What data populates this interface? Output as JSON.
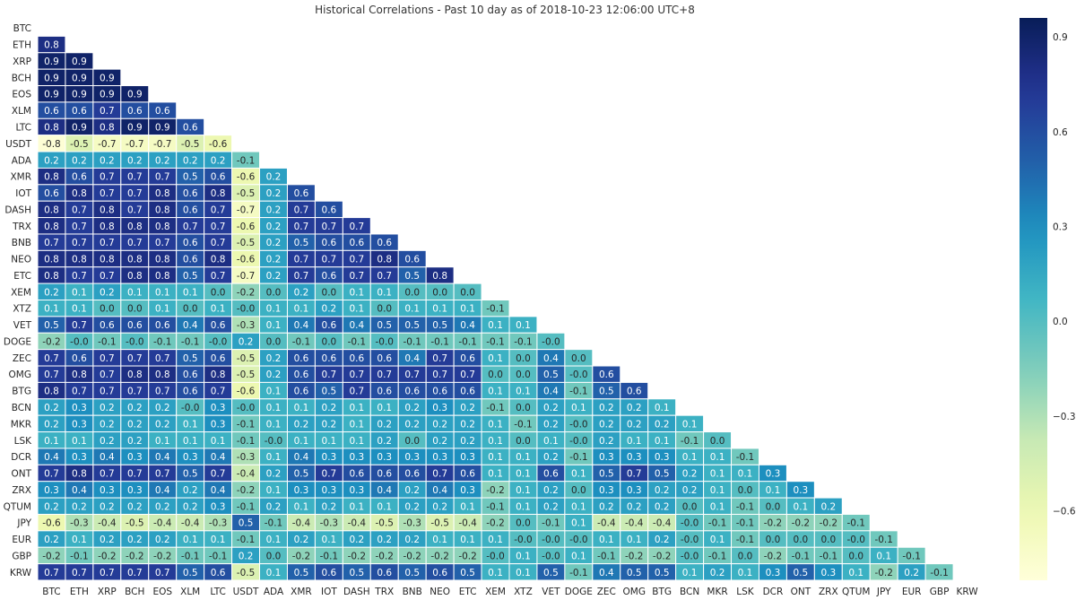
{
  "chart_data": {
    "type": "heatmap",
    "title": "Historical Correlations - Past 10 day as of 2018-10-23 12:06:00 UTC+8",
    "labels": [
      "BTC",
      "ETH",
      "XRP",
      "BCH",
      "EOS",
      "XLM",
      "LTC",
      "USDT",
      "ADA",
      "XMR",
      "IOT",
      "DASH",
      "TRX",
      "BNB",
      "NEO",
      "ETC",
      "XEM",
      "XTZ",
      "VET",
      "DOGE",
      "ZEC",
      "OMG",
      "BTG",
      "BCN",
      "MKR",
      "LSK",
      "DCR",
      "ONT",
      "ZRX",
      "QTUM",
      "JPY",
      "EUR",
      "GBP",
      "KRW"
    ],
    "matrix_lower_triangle": [
      [],
      [
        "0.8"
      ],
      [
        "0.9",
        "0.9"
      ],
      [
        "0.9",
        "0.9",
        "0.9"
      ],
      [
        "0.9",
        "0.9",
        "0.9",
        "0.9"
      ],
      [
        "0.6",
        "0.6",
        "0.7",
        "0.6",
        "0.6"
      ],
      [
        "0.8",
        "0.9",
        "0.8",
        "0.9",
        "0.9",
        "0.6"
      ],
      [
        "-0.8",
        "-0.5",
        "-0.7",
        "-0.7",
        "-0.7",
        "-0.5",
        "-0.6"
      ],
      [
        "0.2",
        "0.2",
        "0.2",
        "0.2",
        "0.2",
        "0.2",
        "0.2",
        "-0.1"
      ],
      [
        "0.8",
        "0.6",
        "0.7",
        "0.7",
        "0.7",
        "0.5",
        "0.6",
        "-0.6",
        "0.2"
      ],
      [
        "0.6",
        "0.8",
        "0.7",
        "0.7",
        "0.8",
        "0.6",
        "0.8",
        "-0.5",
        "0.2",
        "0.6"
      ],
      [
        "0.8",
        "0.7",
        "0.8",
        "0.7",
        "0.8",
        "0.6",
        "0.7",
        "-0.7",
        "0.2",
        "0.7",
        "0.6"
      ],
      [
        "0.8",
        "0.7",
        "0.8",
        "0.8",
        "0.8",
        "0.7",
        "0.7",
        "-0.6",
        "0.2",
        "0.7",
        "0.7",
        "0.7"
      ],
      [
        "0.7",
        "0.7",
        "0.7",
        "0.7",
        "0.7",
        "0.6",
        "0.7",
        "-0.5",
        "0.2",
        "0.5",
        "0.6",
        "0.6",
        "0.6"
      ],
      [
        "0.8",
        "0.8",
        "0.8",
        "0.8",
        "0.8",
        "0.6",
        "0.8",
        "-0.6",
        "0.2",
        "0.7",
        "0.7",
        "0.7",
        "0.8",
        "0.6"
      ],
      [
        "0.8",
        "0.7",
        "0.7",
        "0.8",
        "0.8",
        "0.5",
        "0.7",
        "-0.7",
        "0.2",
        "0.7",
        "0.6",
        "0.7",
        "0.7",
        "0.5",
        "0.8"
      ],
      [
        "0.2",
        "0.1",
        "0.2",
        "0.1",
        "0.1",
        "0.1",
        "0.0",
        "-0.2",
        "0.0",
        "0.2",
        "0.0",
        "0.1",
        "0.1",
        "0.0",
        "0.0",
        "0.0"
      ],
      [
        "0.1",
        "0.1",
        "0.0",
        "0.0",
        "0.1",
        "0.0",
        "0.1",
        "-0.0",
        "0.1",
        "0.1",
        "0.2",
        "0.1",
        "0.0",
        "0.1",
        "0.1",
        "0.1",
        "-0.1"
      ],
      [
        "0.5",
        "0.7",
        "0.6",
        "0.6",
        "0.6",
        "0.4",
        "0.6",
        "-0.3",
        "0.1",
        "0.4",
        "0.6",
        "0.4",
        "0.5",
        "0.5",
        "0.5",
        "0.4",
        "0.1",
        "0.1"
      ],
      [
        "-0.2",
        "-0.0",
        "-0.1",
        "-0.0",
        "-0.1",
        "-0.1",
        "-0.0",
        "0.2",
        "0.0",
        "-0.1",
        "0.0",
        "-0.1",
        "-0.0",
        "-0.1",
        "-0.1",
        "-0.1",
        "-0.1",
        "-0.1",
        "-0.0"
      ],
      [
        "0.7",
        "0.6",
        "0.7",
        "0.7",
        "0.7",
        "0.5",
        "0.6",
        "-0.5",
        "0.2",
        "0.6",
        "0.6",
        "0.6",
        "0.6",
        "0.4",
        "0.7",
        "0.6",
        "0.1",
        "0.0",
        "0.4",
        "0.0"
      ],
      [
        "0.7",
        "0.8",
        "0.7",
        "0.8",
        "0.8",
        "0.6",
        "0.8",
        "-0.5",
        "0.2",
        "0.6",
        "0.7",
        "0.7",
        "0.7",
        "0.7",
        "0.7",
        "0.7",
        "0.0",
        "0.0",
        "0.5",
        "-0.0",
        "0.6"
      ],
      [
        "0.8",
        "0.7",
        "0.7",
        "0.7",
        "0.7",
        "0.6",
        "0.7",
        "-0.6",
        "0.1",
        "0.6",
        "0.5",
        "0.7",
        "0.6",
        "0.6",
        "0.6",
        "0.6",
        "0.1",
        "0.1",
        "0.4",
        "-0.1",
        "0.5",
        "0.6"
      ],
      [
        "0.2",
        "0.3",
        "0.2",
        "0.2",
        "0.2",
        "-0.0",
        "0.3",
        "-0.0",
        "0.1",
        "0.1",
        "0.2",
        "0.1",
        "0.1",
        "0.2",
        "0.3",
        "0.2",
        "-0.1",
        "0.0",
        "0.2",
        "0.1",
        "0.2",
        "0.2",
        "0.1"
      ],
      [
        "0.2",
        "0.3",
        "0.2",
        "0.2",
        "0.2",
        "0.1",
        "0.3",
        "-0.1",
        "0.1",
        "0.2",
        "0.2",
        "0.1",
        "0.2",
        "0.2",
        "0.2",
        "0.2",
        "0.1",
        "-0.1",
        "0.2",
        "-0.0",
        "0.2",
        "0.2",
        "0.2",
        "0.1"
      ],
      [
        "0.1",
        "0.1",
        "0.2",
        "0.2",
        "0.1",
        "0.1",
        "0.1",
        "-0.1",
        "-0.0",
        "0.1",
        "0.1",
        "0.1",
        "0.2",
        "0.0",
        "0.2",
        "0.2",
        "0.1",
        "0.0",
        "0.1",
        "-0.0",
        "0.2",
        "0.1",
        "0.1",
        "-0.1",
        "0.0"
      ],
      [
        "0.4",
        "0.3",
        "0.4",
        "0.3",
        "0.4",
        "0.3",
        "0.4",
        "-0.3",
        "0.1",
        "0.4",
        "0.3",
        "0.3",
        "0.3",
        "0.3",
        "0.3",
        "0.3",
        "0.1",
        "0.1",
        "0.2",
        "-0.1",
        "0.3",
        "0.3",
        "0.3",
        "0.1",
        "0.1",
        "-0.1"
      ],
      [
        "0.7",
        "0.8",
        "0.7",
        "0.7",
        "0.7",
        "0.5",
        "0.7",
        "-0.4",
        "0.2",
        "0.5",
        "0.7",
        "0.6",
        "0.6",
        "0.6",
        "0.7",
        "0.6",
        "0.1",
        "0.1",
        "0.6",
        "0.1",
        "0.5",
        "0.7",
        "0.5",
        "0.2",
        "0.1",
        "0.1",
        "0.3"
      ],
      [
        "0.3",
        "0.4",
        "0.3",
        "0.3",
        "0.4",
        "0.2",
        "0.4",
        "-0.2",
        "0.1",
        "0.3",
        "0.3",
        "0.3",
        "0.4",
        "0.2",
        "0.4",
        "0.3",
        "-0.2",
        "0.1",
        "0.2",
        "0.0",
        "0.3",
        "0.3",
        "0.2",
        "0.2",
        "0.1",
        "0.0",
        "0.1",
        "0.3"
      ],
      [
        "0.2",
        "0.2",
        "0.2",
        "0.2",
        "0.2",
        "0.2",
        "0.3",
        "-0.1",
        "0.2",
        "0.1",
        "0.2",
        "0.1",
        "0.1",
        "0.2",
        "0.2",
        "0.1",
        "-0.1",
        "0.1",
        "0.2",
        "0.1",
        "0.2",
        "0.2",
        "0.2",
        "0.0",
        "0.1",
        "-0.1",
        "0.0",
        "0.1",
        "0.2"
      ],
      [
        "-0.6",
        "-0.3",
        "-0.4",
        "-0.5",
        "-0.4",
        "-0.4",
        "-0.3",
        "0.5",
        "-0.1",
        "-0.4",
        "-0.3",
        "-0.4",
        "-0.5",
        "-0.3",
        "-0.5",
        "-0.4",
        "-0.2",
        "0.0",
        "-0.1",
        "0.1",
        "-0.4",
        "-0.4",
        "-0.4",
        "-0.0",
        "-0.1",
        "-0.1",
        "-0.2",
        "-0.2",
        "-0.2",
        "-0.1"
      ],
      [
        "0.2",
        "0.1",
        "0.2",
        "0.2",
        "0.2",
        "0.1",
        "0.1",
        "-0.1",
        "0.1",
        "0.2",
        "0.1",
        "0.2",
        "0.2",
        "0.2",
        "0.1",
        "0.1",
        "0.1",
        "-0.0",
        "-0.0",
        "-0.0",
        "0.1",
        "0.1",
        "0.2",
        "-0.0",
        "0.1",
        "-0.1",
        "0.0",
        "0.0",
        "0.0",
        "-0.0",
        "-0.1"
      ],
      [
        "-0.2",
        "-0.1",
        "-0.2",
        "-0.2",
        "-0.2",
        "-0.1",
        "-0.1",
        "0.2",
        "0.0",
        "-0.2",
        "-0.1",
        "-0.2",
        "-0.2",
        "-0.2",
        "-0.2",
        "-0.2",
        "-0.0",
        "0.1",
        "-0.0",
        "0.1",
        "-0.1",
        "-0.2",
        "-0.2",
        "-0.0",
        "-0.1",
        "0.0",
        "-0.2",
        "-0.1",
        "-0.1",
        "0.0",
        "0.1",
        "-0.1"
      ],
      [
        "0.7",
        "0.7",
        "0.7",
        "0.7",
        "0.7",
        "0.5",
        "0.6",
        "-0.5",
        "0.1",
        "0.5",
        "0.6",
        "0.5",
        "0.6",
        "0.5",
        "0.6",
        "0.5",
        "0.1",
        "0.1",
        "0.5",
        "-0.1",
        "0.4",
        "0.5",
        "0.5",
        "0.1",
        "0.2",
        "0.1",
        "0.3",
        "0.5",
        "0.3",
        "0.1",
        "-0.2",
        "0.2",
        "-0.1"
      ]
    ],
    "color_scale": "YlGnBu",
    "vmin": -0.82,
    "vmax": 0.96,
    "colorbar_ticks": [
      "0.9",
      "0.6",
      "0.3",
      "0.0",
      "−0.3",
      "−0.6"
    ],
    "colorbar_tick_values": [
      0.9,
      0.6,
      0.3,
      0.0,
      -0.3,
      -0.6
    ],
    "grid": true,
    "legend": "right"
  }
}
